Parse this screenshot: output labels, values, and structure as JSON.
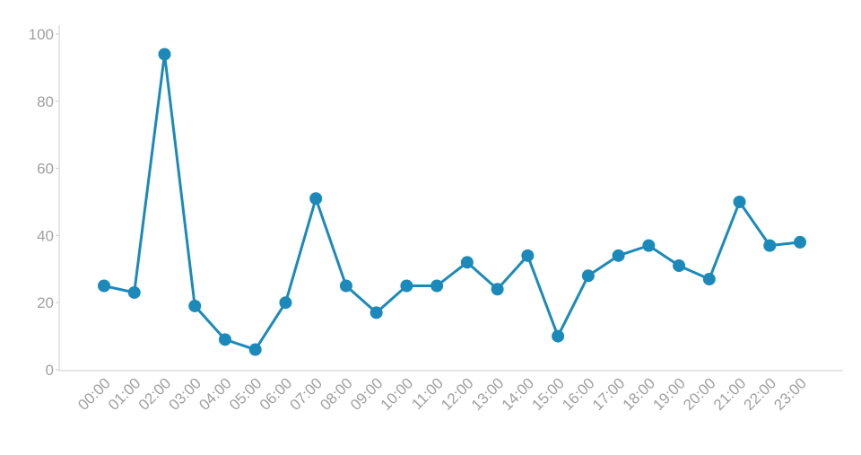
{
  "chart_data": {
    "type": "line",
    "categories": [
      "00:00",
      "01:00",
      "02:00",
      "03:00",
      "04:00",
      "05:00",
      "06:00",
      "07:00",
      "08:00",
      "09:00",
      "10:00",
      "11:00",
      "12:00",
      "13:00",
      "14:00",
      "15:00",
      "16:00",
      "17:00",
      "18:00",
      "19:00",
      "20:00",
      "21:00",
      "22:00",
      "23:00"
    ],
    "values": [
      25,
      23,
      94,
      19,
      9,
      6,
      20,
      51,
      25,
      17,
      25,
      25,
      32,
      24,
      34,
      10,
      28,
      34,
      37,
      31,
      27,
      50,
      37,
      38
    ],
    "color": "#1b8aba",
    "ylim": [
      0,
      100
    ],
    "yticks": [
      0,
      20,
      40,
      60,
      80,
      100
    ]
  }
}
